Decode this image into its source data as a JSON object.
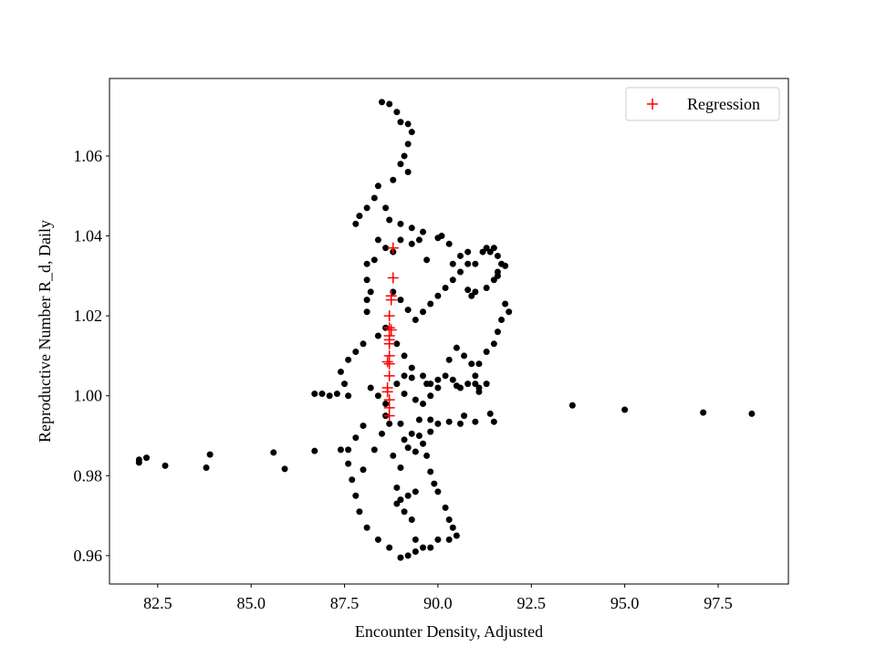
{
  "chart_data": {
    "type": "scatter",
    "x_label": "Encounter Density, Adjusted",
    "y_label": "Reproductive Number R_d, Daily",
    "xlim": [
      81.21,
      99.38
    ],
    "ylim": [
      0.9529,
      1.0794
    ],
    "xticks": [
      82.5,
      {
        "value": 85,
        "label": "85.0"
      },
      87.5,
      {
        "value": 90,
        "label": "90.0"
      },
      92.5,
      {
        "value": 95,
        "label": "95.0"
      },
      97.5
    ],
    "yticks": [
      0.96,
      0.98,
      {
        "value": 1,
        "label": "1.00"
      },
      1.02,
      1.04,
      1.06
    ],
    "grid": false,
    "legend": "upper right",
    "series": [
      {
        "color": "#000000",
        "marker": "circle",
        "x": [
          82.0,
          82.0,
          82.2,
          82.7,
          83.8,
          83.9,
          85.6,
          85.9,
          86.7,
          93.6,
          95.0,
          97.1,
          98.4,
          88.5,
          88.7,
          88.9,
          89.0,
          89.2,
          89.3,
          89.2,
          89.1,
          89.0,
          89.2,
          88.8,
          88.4,
          88.3,
          88.1,
          87.9,
          87.8,
          88.6,
          88.7,
          89.0,
          89.3,
          89.6,
          89.3,
          89.0,
          88.8,
          88.6,
          88.4,
          88.3,
          88.1,
          88.1,
          88.2,
          88.1,
          88.1,
          88.8,
          89.0,
          89.2,
          89.4,
          89.6,
          89.8,
          90.0,
          90.2,
          90.4,
          90.6,
          90.8,
          90.3,
          90.1,
          90.0,
          91.0,
          91.2,
          91.4,
          91.5,
          91.6,
          91.7,
          91.8,
          91.6,
          91.5,
          91.3,
          91.0,
          90.8,
          90.9,
          91.8,
          91.9,
          91.7,
          91.6,
          91.5,
          91.3,
          91.1,
          91.0,
          90.8,
          90.6,
          90.4,
          90.2,
          90.0,
          89.8,
          89.6,
          89.3,
          89.1,
          88.9,
          89.1,
          89.4,
          89.6,
          89.8,
          90.0,
          90.3,
          90.5,
          90.7,
          90.9,
          91.0,
          91.1,
          91.4,
          91.5,
          91.0,
          90.6,
          90.3,
          90.0,
          89.8,
          89.6,
          89.4,
          89.2,
          89.1,
          89.3,
          89.5,
          89.7,
          89.8,
          89.9,
          90.0,
          90.2,
          90.3,
          90.4,
          90.5,
          90.3,
          90.0,
          89.8,
          89.6,
          89.4,
          89.2,
          89.0,
          89.4,
          89.3,
          89.1,
          89.0,
          89.2,
          89.4,
          88.7,
          88.4,
          88.1,
          87.9,
          87.8,
          87.7,
          87.6,
          87.6,
          87.4,
          88.0,
          88.3,
          88.5,
          88.7,
          88.8,
          89.0,
          88.9,
          88.9,
          89.5,
          89.8,
          88.0,
          87.8,
          87.6,
          87.5,
          87.3,
          87.1,
          86.9,
          86.7,
          87.4,
          87.6,
          87.8,
          88.0,
          88.4,
          88.6,
          88.9,
          89.1,
          89.3,
          89.7,
          88.6,
          88.6,
          88.4,
          88.2,
          89.0,
          90.7,
          90.5,
          91.1,
          91.3,
          90.6,
          90.8,
          91.3,
          91.6,
          89.7,
          89.5,
          90.4
        ],
        "values": [
          0.9833,
          0.984,
          0.9845,
          0.9825,
          0.982,
          0.9853,
          0.9858,
          0.9817,
          0.9862,
          0.9976,
          0.9965,
          0.9958,
          0.9955,
          1.0735,
          1.073,
          1.071,
          1.0685,
          1.068,
          1.066,
          1.063,
          1.06,
          1.058,
          1.056,
          1.054,
          1.0525,
          1.0495,
          1.047,
          1.045,
          1.043,
          1.047,
          1.044,
          1.043,
          1.042,
          1.041,
          1.038,
          1.039,
          1.036,
          1.037,
          1.039,
          1.034,
          1.033,
          1.029,
          1.026,
          1.024,
          1.021,
          1.026,
          1.024,
          1.0215,
          1.019,
          1.021,
          1.023,
          1.025,
          1.027,
          1.029,
          1.031,
          1.033,
          1.038,
          1.04,
          1.0395,
          1.033,
          1.036,
          1.036,
          1.037,
          1.035,
          1.033,
          1.0325,
          1.031,
          1.029,
          1.027,
          1.026,
          1.0265,
          1.025,
          1.023,
          1.021,
          1.019,
          1.016,
          1.013,
          1.011,
          1.008,
          1.005,
          1.003,
          1.002,
          1.004,
          1.005,
          1.004,
          1.003,
          1.005,
          1.0045,
          1.005,
          1.003,
          1.0005,
          0.999,
          0.998,
          1.0,
          1.002,
          1.009,
          1.012,
          1.01,
          1.008,
          1.003,
          1.001,
          0.9955,
          0.9935,
          0.9935,
          0.993,
          0.9935,
          0.993,
          0.991,
          0.988,
          0.986,
          0.987,
          0.989,
          0.9905,
          0.99,
          0.985,
          0.981,
          0.978,
          0.976,
          0.972,
          0.969,
          0.967,
          0.965,
          0.964,
          0.964,
          0.962,
          0.962,
          0.961,
          0.96,
          0.9595,
          0.964,
          0.969,
          0.971,
          0.974,
          0.975,
          0.976,
          0.962,
          0.964,
          0.967,
          0.971,
          0.975,
          0.979,
          0.983,
          0.9865,
          0.9865,
          0.9815,
          0.9865,
          0.9905,
          0.993,
          0.985,
          0.982,
          0.977,
          0.973,
          0.994,
          0.994,
          0.9925,
          0.9895,
          1.0,
          1.003,
          1.0005,
          1.0,
          1.0005,
          1.0005,
          1.006,
          1.009,
          1.011,
          1.013,
          1.015,
          1.017,
          1.013,
          1.01,
          1.007,
          1.003,
          0.995,
          0.998,
          1.0,
          1.002,
          0.993,
          0.995,
          1.0025,
          1.002,
          1.003,
          1.035,
          1.036,
          1.037,
          1.03,
          1.034,
          1.039,
          1.033
        ]
      },
      {
        "name": "Regression",
        "color": "#ff0000",
        "marker": "plus",
        "x": [
          88.8,
          88.8,
          88.75,
          88.75,
          88.7,
          88.7,
          88.7,
          88.7,
          88.7,
          88.7,
          88.7,
          88.7,
          88.65,
          88.65,
          88.7,
          88.7,
          88.7,
          88.75,
          88.65
        ],
        "values": [
          1.037,
          1.0295,
          1.025,
          1.024,
          1.02,
          1.017,
          1.015,
          1.014,
          1.013,
          1.01,
          1.008,
          1.005,
          1.002,
          1.001,
          0.999,
          0.997,
          0.995,
          1.0165,
          1.0085
        ]
      }
    ]
  }
}
